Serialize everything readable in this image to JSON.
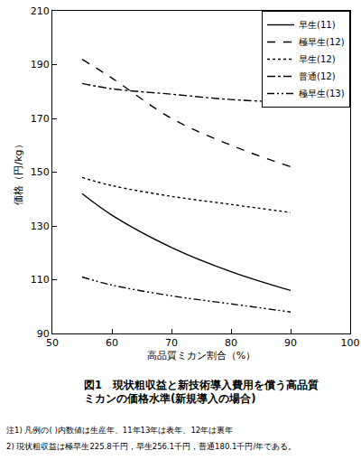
{
  "chart_data": {
    "type": "line",
    "title": [
      "図1　現状粗収益と新技術導入費用を償う高品質",
      "ミカンの価格水準(新規導入の場合)"
    ],
    "x_label": "高品質ミカン割合（%）",
    "y_label": "価格（円/kg）",
    "x": [
      55,
      60,
      70,
      80,
      90
    ],
    "series": [
      {
        "name": "早生(11)",
        "color": "#000000",
        "line_style": "solid",
        "values": [
          142,
          134,
          122,
          113,
          106
        ]
      },
      {
        "name": "極早生(12)",
        "color": "#000000",
        "line_style": "dash",
        "values": [
          192,
          185,
          170,
          160,
          152
        ]
      },
      {
        "name": "早生(12)",
        "color": "#000000",
        "line_style": "dot",
        "values": [
          148,
          145,
          141,
          138,
          135
        ]
      },
      {
        "name": "普通(12)",
        "color": "#000000",
        "line_style": "dashdot",
        "values": [
          183,
          181,
          179,
          177,
          176
        ]
      },
      {
        "name": "極早生(13)",
        "color": "#000000",
        "line_style": "dashdotdot",
        "values": [
          111,
          108,
          104,
          101,
          98
        ]
      }
    ],
    "xlim": [
      50,
      100
    ],
    "xticks": [
      50,
      60,
      70,
      80,
      90,
      100
    ],
    "ylim": [
      90,
      210
    ],
    "yticks": [
      90,
      110,
      130,
      150,
      170,
      190,
      210
    ],
    "grid": false,
    "legend": "top-right",
    "annotations": [
      "注1) 凡例の( )内数値は生産年、11年13年は表年、12年は裏年",
      "2) 現状粗収益は極早生225.8千円，早生256.1千円，普通180.1千円/年である。"
    ]
  }
}
